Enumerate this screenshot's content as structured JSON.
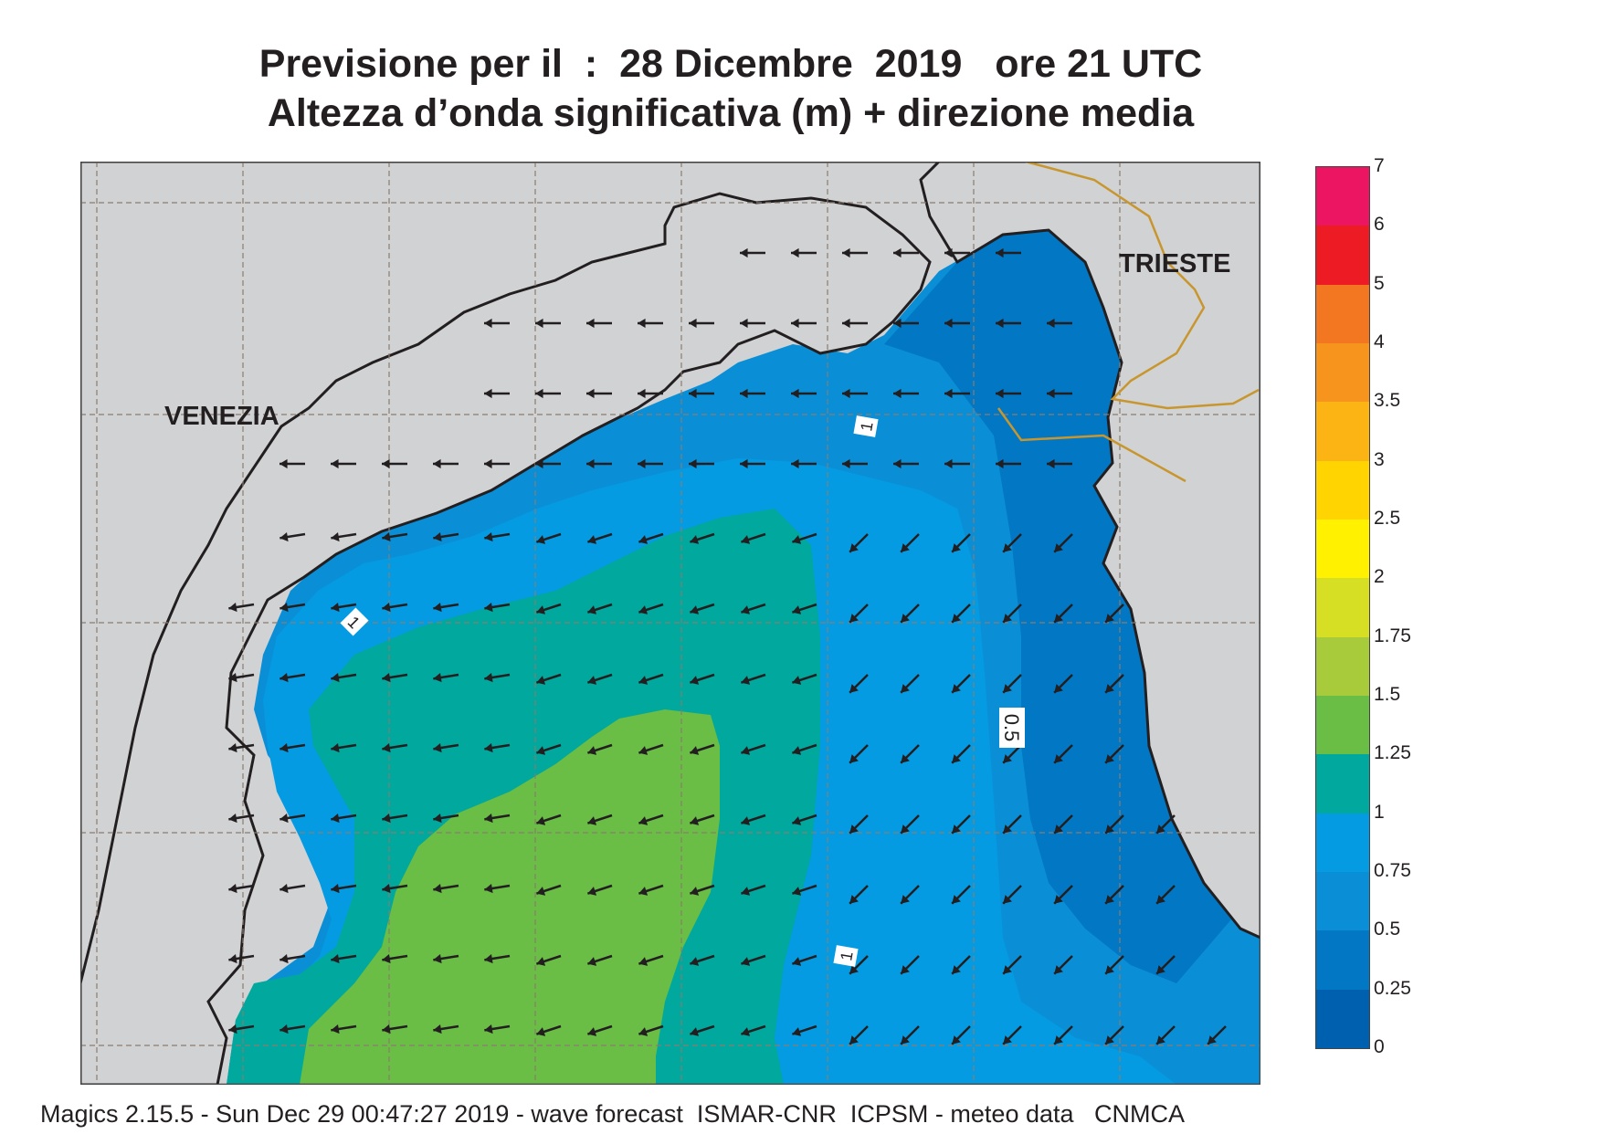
{
  "title": {
    "line1": "Previsione per il  :  28 Dicembre  2019   ore 21 UTC",
    "line2": "Altezza d’onda significativa (m) + direzione media"
  },
  "map": {
    "cities": [
      {
        "name": "VENEZIA"
      },
      {
        "name": "TRIESTE"
      }
    ],
    "contour_labels": [
      "1",
      "1",
      "0.5",
      "1"
    ],
    "colors": {
      "land": "#d1d2d4",
      "coast": "#231f20",
      "border": "#c8962e",
      "arrow": "#231f20",
      "grid": "#8c7b70"
    }
  },
  "legend": {
    "ticks": [
      "7",
      "6",
      "5",
      "4",
      "3.5",
      "3",
      "2.5",
      "2",
      "1.75",
      "1.5",
      "1.25",
      "1",
      "0.75",
      "0.5",
      "0.25",
      "0"
    ],
    "colors": [
      "#0060b0",
      "#0277c4",
      "#0a8fd7",
      "#049be3",
      "#00a89d",
      "#6abd45",
      "#a8cb3c",
      "#d6df23",
      "#fff100",
      "#ffd400",
      "#fbb414",
      "#f7941d",
      "#f37621",
      "#ed1c24",
      "#ec1561"
    ]
  },
  "footer": "Magics 2.15.5 - Sun Dec 29 00:47:27 2019 - wave forecast  ISMAR-CNR  ICPSM - meteo data   CNMCA"
}
